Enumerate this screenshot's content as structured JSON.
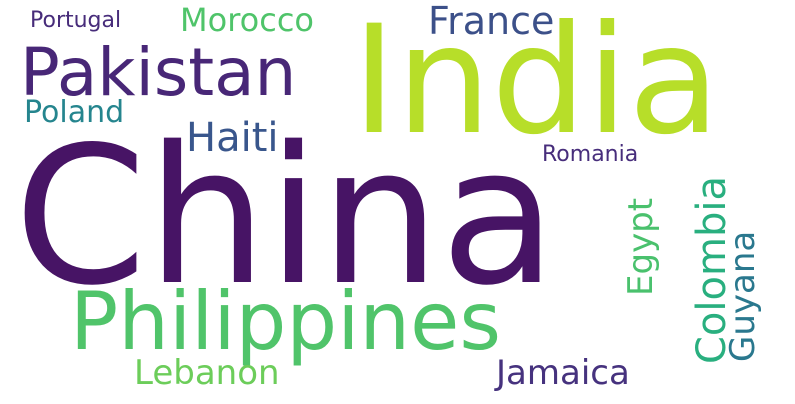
{
  "words": [
    {
      "text": "China",
      "color": "#471465"
    },
    {
      "text": "India",
      "color": "#b7de29"
    },
    {
      "text": "Philippines",
      "color": "#50c46a"
    },
    {
      "text": "Pakistan",
      "color": "#482777"
    },
    {
      "text": "France",
      "color": "#3c5089"
    },
    {
      "text": "Morocco",
      "color": "#4fc46a"
    },
    {
      "text": "Portugal",
      "color": "#472c7a"
    },
    {
      "text": "Poland",
      "color": "#25858e"
    },
    {
      "text": "Haiti",
      "color": "#39568c"
    },
    {
      "text": "Romania",
      "color": "#472d7b"
    },
    {
      "text": "Egypt",
      "color": "#4ac16d"
    },
    {
      "text": "Colombia",
      "color": "#29af7f"
    },
    {
      "text": "Guyana",
      "color": "#2a788e"
    },
    {
      "text": "Lebanon",
      "color": "#6ccd5a"
    },
    {
      "text": "Jamaica",
      "color": "#46327e"
    }
  ]
}
